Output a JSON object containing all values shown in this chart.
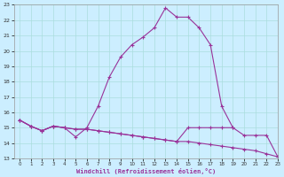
{
  "xlabel": "Windchill (Refroidissement éolien,°C)",
  "background_color": "#cceeff",
  "grid_color": "#aadddd",
  "line_color": "#993399",
  "hours": [
    0,
    1,
    2,
    3,
    4,
    5,
    6,
    7,
    8,
    9,
    10,
    11,
    12,
    13,
    14,
    15,
    16,
    17,
    18,
    19,
    20,
    21,
    22,
    23
  ],
  "series1": [
    15.5,
    15.1,
    14.8,
    15.1,
    15.0,
    14.4,
    15.0,
    16.4,
    18.3,
    19.6,
    20.4,
    20.9,
    21.5,
    22.8,
    22.2,
    22.2,
    21.5,
    20.4,
    16.4,
    15.0,
    null,
    null,
    null,
    null
  ],
  "series2": [
    15.5,
    15.1,
    14.8,
    15.1,
    15.0,
    14.9,
    14.9,
    14.8,
    14.7,
    14.6,
    14.5,
    14.4,
    14.3,
    14.2,
    14.1,
    14.1,
    14.0,
    13.9,
    13.8,
    13.7,
    13.6,
    13.5,
    13.3,
    13.1
  ],
  "series3": [
    15.5,
    15.1,
    14.8,
    15.1,
    15.0,
    14.9,
    14.9,
    14.8,
    14.7,
    14.6,
    14.5,
    14.4,
    14.3,
    14.2,
    14.1,
    15.0,
    15.0,
    15.0,
    15.0,
    15.0,
    14.5,
    14.5,
    14.5,
    13.1
  ],
  "ylim": [
    13,
    23
  ],
  "xlim": [
    -0.5,
    23
  ],
  "yticks": [
    13,
    14,
    15,
    16,
    17,
    18,
    19,
    20,
    21,
    22,
    23
  ],
  "xticks": [
    0,
    1,
    2,
    3,
    4,
    5,
    6,
    7,
    8,
    9,
    10,
    11,
    12,
    13,
    14,
    15,
    16,
    17,
    18,
    19,
    20,
    21,
    22,
    23
  ]
}
